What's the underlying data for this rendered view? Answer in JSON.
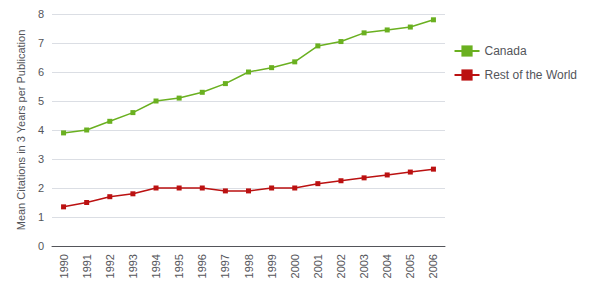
{
  "chart_data": {
    "type": "line",
    "ylabel": "Mean Citations in 3 Years per Publication",
    "categories": [
      "1990",
      "1991",
      "1992",
      "1993",
      "1994",
      "1995",
      "1996",
      "1997",
      "1998",
      "1999",
      "2000",
      "2001",
      "2002",
      "2003",
      "2004",
      "2005",
      "2006"
    ],
    "series": [
      {
        "name": "Canada",
        "color": "#6ab020",
        "marker": "square",
        "values": [
          3.9,
          4.0,
          4.3,
          4.6,
          5.0,
          5.1,
          5.3,
          5.6,
          6.0,
          6.15,
          6.35,
          6.9,
          7.05,
          7.35,
          7.45,
          7.55,
          7.8
        ]
      },
      {
        "name": "Rest of the World",
        "color": "#bb1111",
        "marker": "square",
        "values": [
          1.35,
          1.5,
          1.7,
          1.8,
          2.0,
          2.0,
          2.0,
          1.9,
          1.9,
          2.0,
          2.0,
          2.15,
          2.25,
          2.35,
          2.45,
          2.55,
          2.65
        ]
      }
    ],
    "ylim": [
      0,
      8
    ],
    "yticks": [
      0,
      1,
      2,
      3,
      4,
      5,
      6,
      7,
      8
    ],
    "grid": true,
    "legend": "right"
  }
}
